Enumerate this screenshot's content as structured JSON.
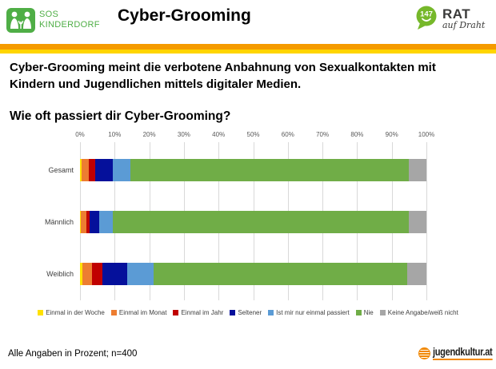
{
  "header": {
    "sos_logo": {
      "line1": "SOS",
      "line2": "KINDERDORF",
      "color": "#4fae46"
    },
    "title": "Cyber-Grooming",
    "rat_logo": {
      "number": "147",
      "line1": "RAT",
      "line2": "auf Draht",
      "bubble_color": "#76b82a",
      "text_color": "#3a3a39"
    }
  },
  "divider": {
    "orange": "#f59b00",
    "yellow": "#ffd500"
  },
  "intro_text": "Cyber-Grooming meint die verbotene Anbahnung von Sexualkontakten mit Kindern und Jugendlichen mittels digitaler Medien.",
  "chart_heading": "Wie oft passiert dir Cyber-Grooming?",
  "chart_data": {
    "type": "bar",
    "orientation": "horizontal",
    "stacked": true,
    "title": "Wie oft passiert dir Cyber-Grooming?",
    "categories": [
      "Gesamt",
      "Männlich",
      "Weiblich"
    ],
    "series": [
      {
        "name": "Einmal in der Woche",
        "color": "#ffe100",
        "values": [
          0.5,
          0.3,
          0.6
        ]
      },
      {
        "name": "Einmal im Monat",
        "color": "#ed7d31",
        "values": [
          2.0,
          1.5,
          2.8
        ]
      },
      {
        "name": "Einmal im Jahr",
        "color": "#c00000",
        "values": [
          2.0,
          1.0,
          3.0
        ]
      },
      {
        "name": "Seltener",
        "color": "#05109b",
        "values": [
          5.0,
          2.8,
          7.3
        ]
      },
      {
        "name": "Ist mir nur einmal passiert",
        "color": "#5b9bd5",
        "values": [
          5.0,
          3.8,
          7.5
        ]
      },
      {
        "name": "Nie",
        "color": "#70ad47",
        "values": [
          80.5,
          85.6,
          73.3
        ]
      },
      {
        "name": "Keine Angabe/weiß nicht",
        "color": "#a6a6a6",
        "values": [
          5.0,
          5.0,
          5.5
        ]
      }
    ],
    "x_ticks": [
      "0%",
      "10%",
      "20%",
      "30%",
      "40%",
      "50%",
      "60%",
      "70%",
      "80%",
      "90%",
      "100%"
    ],
    "xlim": [
      0,
      100
    ],
    "grid": true,
    "legend_position": "bottom"
  },
  "footer": {
    "note": "Alle Angaben in Prozent; n=400",
    "logo_text": "jugendkultur.at"
  }
}
